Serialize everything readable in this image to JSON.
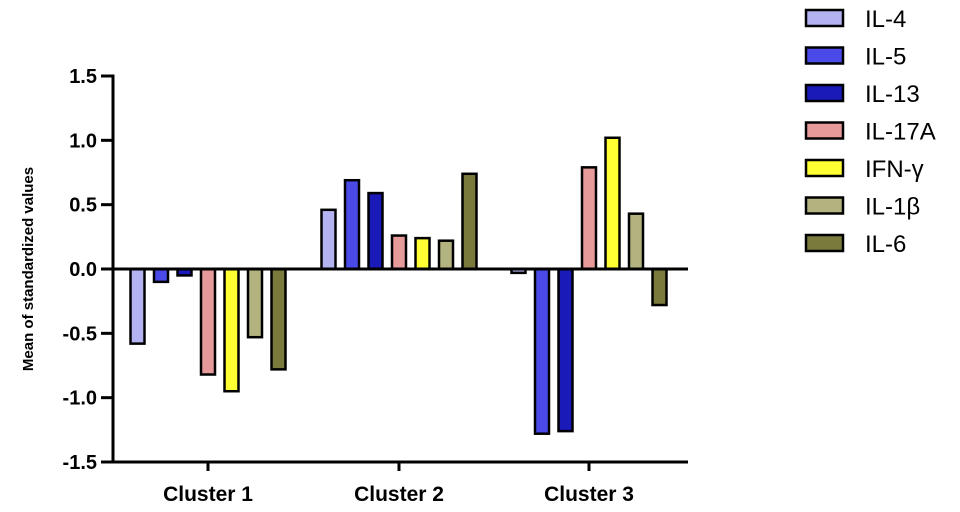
{
  "chart_data": {
    "type": "bar",
    "ylabel": "Mean of standardized values",
    "xlabel": "",
    "ylim": [
      -1.5,
      1.5
    ],
    "yticks": [
      "-1.5",
      "-1.0",
      "-0.5",
      "0.0",
      "0.5",
      "1.0",
      "1.5"
    ],
    "categories": [
      "Cluster 1",
      "Cluster 2",
      "Cluster 3"
    ],
    "legend_position": "top-right",
    "grid": false,
    "series": [
      {
        "name": "IL-4",
        "color": "#b3b3f2",
        "values": [
          -0.58,
          0.46,
          -0.03
        ]
      },
      {
        "name": "IL-5",
        "color": "#4a4ae8",
        "values": [
          -0.1,
          0.69,
          -1.28
        ]
      },
      {
        "name": "IL-13",
        "color": "#1a1ab8",
        "values": [
          -0.05,
          0.59,
          -1.26
        ]
      },
      {
        "name": "IL-17A",
        "color": "#e69a9a",
        "values": [
          -0.82,
          0.26,
          0.79
        ]
      },
      {
        "name": "IFN-γ",
        "color": "#ffff33",
        "values": [
          -0.95,
          0.24,
          1.02
        ]
      },
      {
        "name": "IL-1β",
        "color": "#b3b380",
        "values": [
          -0.53,
          0.22,
          0.43
        ]
      },
      {
        "name": "IL-6",
        "color": "#7a7a3d",
        "values": [
          -0.78,
          0.74,
          -0.28
        ]
      }
    ]
  }
}
